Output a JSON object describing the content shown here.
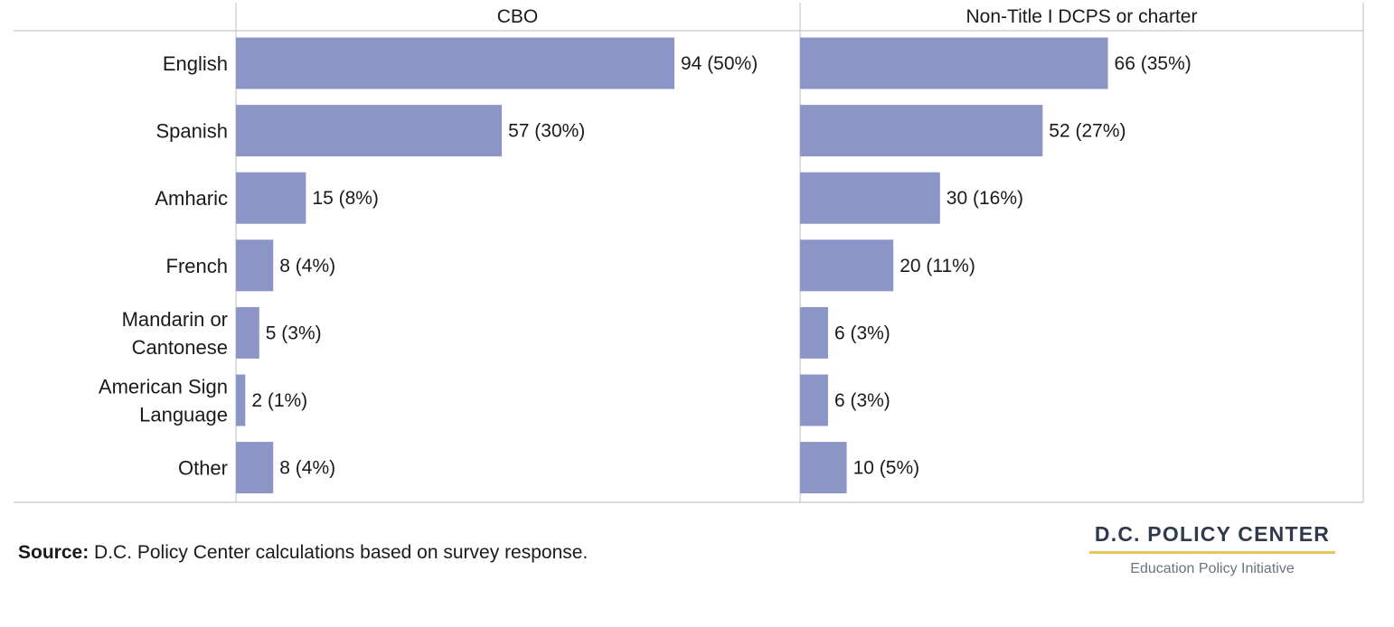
{
  "chart_data": {
    "type": "bar",
    "orientation": "horizontal",
    "categories": [
      [
        "English"
      ],
      [
        "Spanish"
      ],
      [
        "Amharic"
      ],
      [
        "French"
      ],
      [
        "Mandarin or",
        "Cantonese"
      ],
      [
        "American Sign",
        "Language"
      ],
      [
        "Other"
      ]
    ],
    "panels": [
      {
        "name": "CBO",
        "values": [
          94,
          57,
          15,
          8,
          5,
          2,
          8
        ],
        "labels": [
          "94 (50%)",
          "57 (30%)",
          "15 (8%)",
          "8 (4%)",
          "5 (3%)",
          "2 (1%)",
          "8 (4%)"
        ]
      },
      {
        "name": "Non-Title I DCPS or charter",
        "values": [
          66,
          52,
          30,
          20,
          6,
          6,
          10
        ],
        "labels": [
          "66 (35%)",
          "52 (27%)",
          "30 (16%)",
          "20 (11%)",
          "6 (3%)",
          "6 (3%)",
          "10 (5%)"
        ]
      }
    ],
    "bar_color": "#8b96c6",
    "grid": false
  },
  "footer": {
    "source_label": "Source:",
    "source_text": " D.C. Policy Center calculations based on survey response."
  },
  "brand": {
    "name": "D.C. POLICY CENTER",
    "tagline": "Education Policy Initiative",
    "accent_color": "#e8c55a"
  }
}
